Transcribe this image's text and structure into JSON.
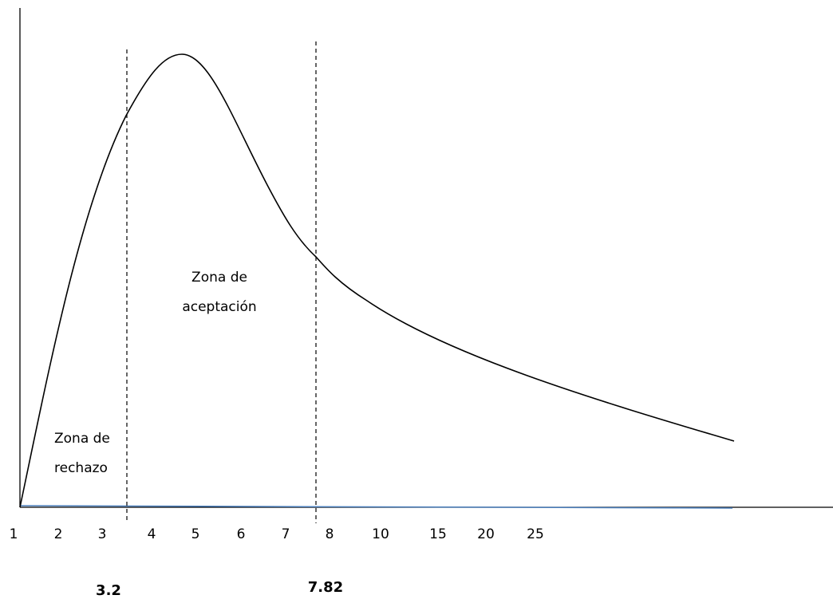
{
  "distribution": {
    "x_ticks": [
      "1",
      "2",
      "3",
      "4",
      "5",
      "6",
      "7",
      "8",
      "10",
      "15",
      "20",
      "25"
    ],
    "critical_values": [
      {
        "label": "3.2",
        "value": 3.2
      },
      {
        "label": "7.82",
        "value": 7.82
      }
    ],
    "zones": {
      "rejection_line1": "Zona de",
      "rejection_line2": "rechazo",
      "acceptance_line1": "Zona de",
      "acceptance_line2": "aceptación"
    }
  },
  "colors": {
    "curve": "#000000",
    "baseline": "#4a7ebb",
    "axis": "#000000"
  }
}
